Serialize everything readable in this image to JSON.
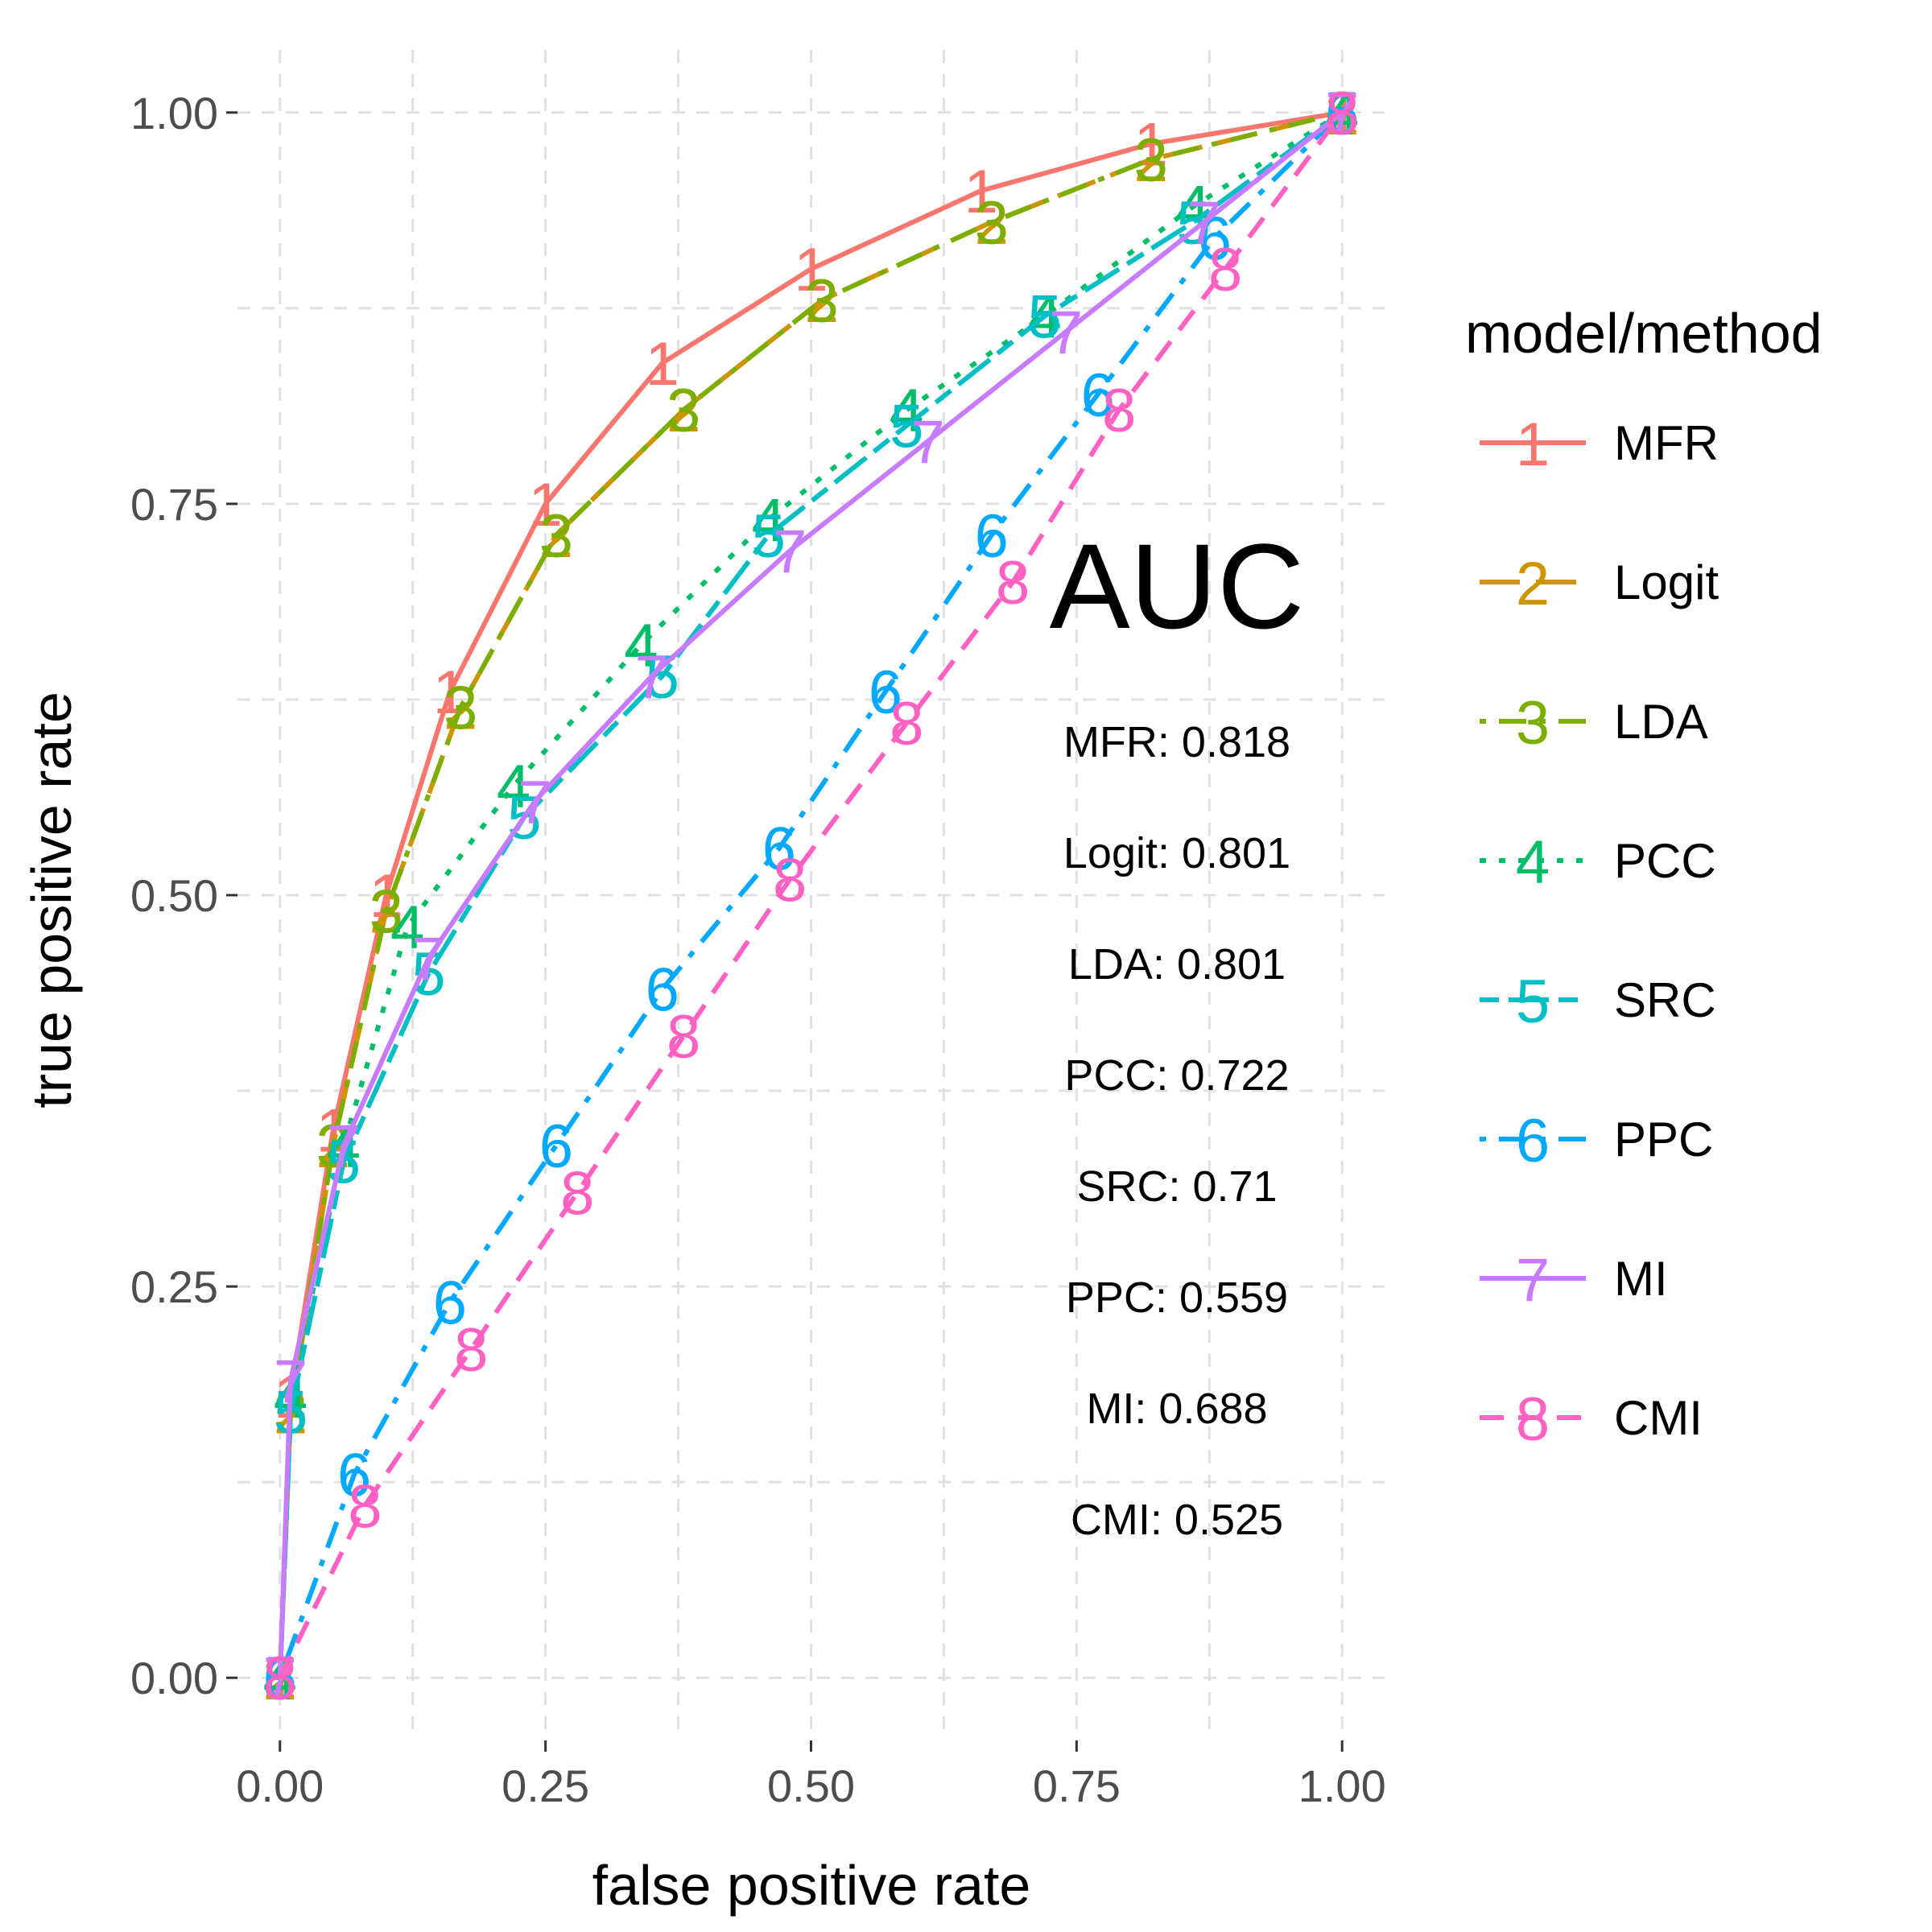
{
  "chart_data": {
    "type": "line",
    "xlabel": "false positive rate",
    "ylabel": "true positive rate",
    "xlim": [
      -0.04,
      1.04
    ],
    "ylim": [
      -0.04,
      1.04
    ],
    "x_ticks": [
      0.0,
      0.25,
      0.5,
      0.75,
      1.0
    ],
    "y_ticks": [
      0.0,
      0.25,
      0.5,
      0.75,
      1.0
    ],
    "x_tick_labels": [
      "0.00",
      "0.25",
      "0.50",
      "0.75",
      "1.00"
    ],
    "y_tick_labels": [
      "0.00",
      "0.25",
      "0.50",
      "0.75",
      "1.00"
    ],
    "grid": true,
    "legend": {
      "title": "model/method",
      "placement": "right"
    },
    "annotation": {
      "title": "AUC",
      "lines": [
        "MFR: 0.818",
        "Logit: 0.801",
        "LDA: 0.801",
        "PCC: 0.722",
        "SRC: 0.71",
        "PPC: 0.559",
        "MI: 0.688",
        "CMI: 0.525"
      ]
    },
    "series": [
      {
        "name": "MFR",
        "marker": "1",
        "color": "#F8766D",
        "dash": "solid",
        "points": [
          [
            0,
            0
          ],
          [
            0.01,
            0.18
          ],
          [
            0.05,
            0.35
          ],
          [
            0.1,
            0.5
          ],
          [
            0.16,
            0.63
          ],
          [
            0.25,
            0.75
          ],
          [
            0.36,
            0.84
          ],
          [
            0.5,
            0.9
          ],
          [
            0.66,
            0.95
          ],
          [
            0.82,
            0.98
          ],
          [
            1,
            1
          ]
        ]
      },
      {
        "name": "Logit",
        "marker": "2",
        "color": "#CD9600",
        "dash": "longdash",
        "points": [
          [
            0,
            0
          ],
          [
            0.01,
            0.17
          ],
          [
            0.05,
            0.34
          ],
          [
            0.1,
            0.49
          ],
          [
            0.17,
            0.62
          ],
          [
            0.26,
            0.73
          ],
          [
            0.38,
            0.81
          ],
          [
            0.51,
            0.88
          ],
          [
            0.67,
            0.93
          ],
          [
            0.82,
            0.97
          ],
          [
            1,
            1
          ]
        ]
      },
      {
        "name": "LDA",
        "marker": "3",
        "color": "#7CAE00",
        "dash": "dotdash",
        "points": [
          [
            0,
            0
          ],
          [
            0.01,
            0.17
          ],
          [
            0.05,
            0.34
          ],
          [
            0.1,
            0.49
          ],
          [
            0.17,
            0.62
          ],
          [
            0.26,
            0.73
          ],
          [
            0.38,
            0.81
          ],
          [
            0.51,
            0.88
          ],
          [
            0.67,
            0.93
          ],
          [
            0.82,
            0.97
          ],
          [
            1,
            1
          ]
        ]
      },
      {
        "name": "PCC",
        "marker": "4",
        "color": "#00BE67",
        "dash": "dotted",
        "points": [
          [
            0,
            0
          ],
          [
            0.01,
            0.18
          ],
          [
            0.06,
            0.34
          ],
          [
            0.12,
            0.48
          ],
          [
            0.22,
            0.57
          ],
          [
            0.34,
            0.66
          ],
          [
            0.46,
            0.74
          ],
          [
            0.59,
            0.81
          ],
          [
            0.72,
            0.87
          ],
          [
            0.86,
            0.94
          ],
          [
            1,
            1
          ]
        ]
      },
      {
        "name": "SRC",
        "marker": "5",
        "color": "#00BFC4",
        "dash": "twodash",
        "points": [
          [
            0,
            0
          ],
          [
            0.01,
            0.17
          ],
          [
            0.06,
            0.33
          ],
          [
            0.14,
            0.45
          ],
          [
            0.23,
            0.55
          ],
          [
            0.36,
            0.64
          ],
          [
            0.46,
            0.73
          ],
          [
            0.59,
            0.8
          ],
          [
            0.72,
            0.87
          ],
          [
            0.86,
            0.93
          ],
          [
            1,
            1
          ]
        ]
      },
      {
        "name": "PPC",
        "marker": "6",
        "color": "#00A9FF",
        "dash": "dotdash",
        "points": [
          [
            0,
            0
          ],
          [
            0.07,
            0.13
          ],
          [
            0.16,
            0.24
          ],
          [
            0.26,
            0.34
          ],
          [
            0.36,
            0.44
          ],
          [
            0.47,
            0.53
          ],
          [
            0.57,
            0.63
          ],
          [
            0.67,
            0.73
          ],
          [
            0.77,
            0.82
          ],
          [
            0.88,
            0.92
          ],
          [
            1,
            1
          ]
        ]
      },
      {
        "name": "MI",
        "marker": "7",
        "color": "#C77CFF",
        "dash": "solid",
        "points": [
          [
            0,
            0
          ],
          [
            0.01,
            0.19
          ],
          [
            0.06,
            0.34
          ],
          [
            0.14,
            0.46
          ],
          [
            0.24,
            0.56
          ],
          [
            0.35,
            0.64
          ],
          [
            0.48,
            0.72
          ],
          [
            0.61,
            0.79
          ],
          [
            0.74,
            0.86
          ],
          [
            0.87,
            0.93
          ],
          [
            1,
            1
          ]
        ]
      },
      {
        "name": "CMI",
        "marker": "8",
        "color": "#FF61C3",
        "dash": "dashed",
        "points": [
          [
            0,
            0
          ],
          [
            0.08,
            0.11
          ],
          [
            0.18,
            0.21
          ],
          [
            0.28,
            0.31
          ],
          [
            0.38,
            0.41
          ],
          [
            0.48,
            0.51
          ],
          [
            0.59,
            0.61
          ],
          [
            0.69,
            0.7
          ],
          [
            0.79,
            0.81
          ],
          [
            0.89,
            0.9
          ],
          [
            1,
            1
          ]
        ]
      }
    ]
  }
}
